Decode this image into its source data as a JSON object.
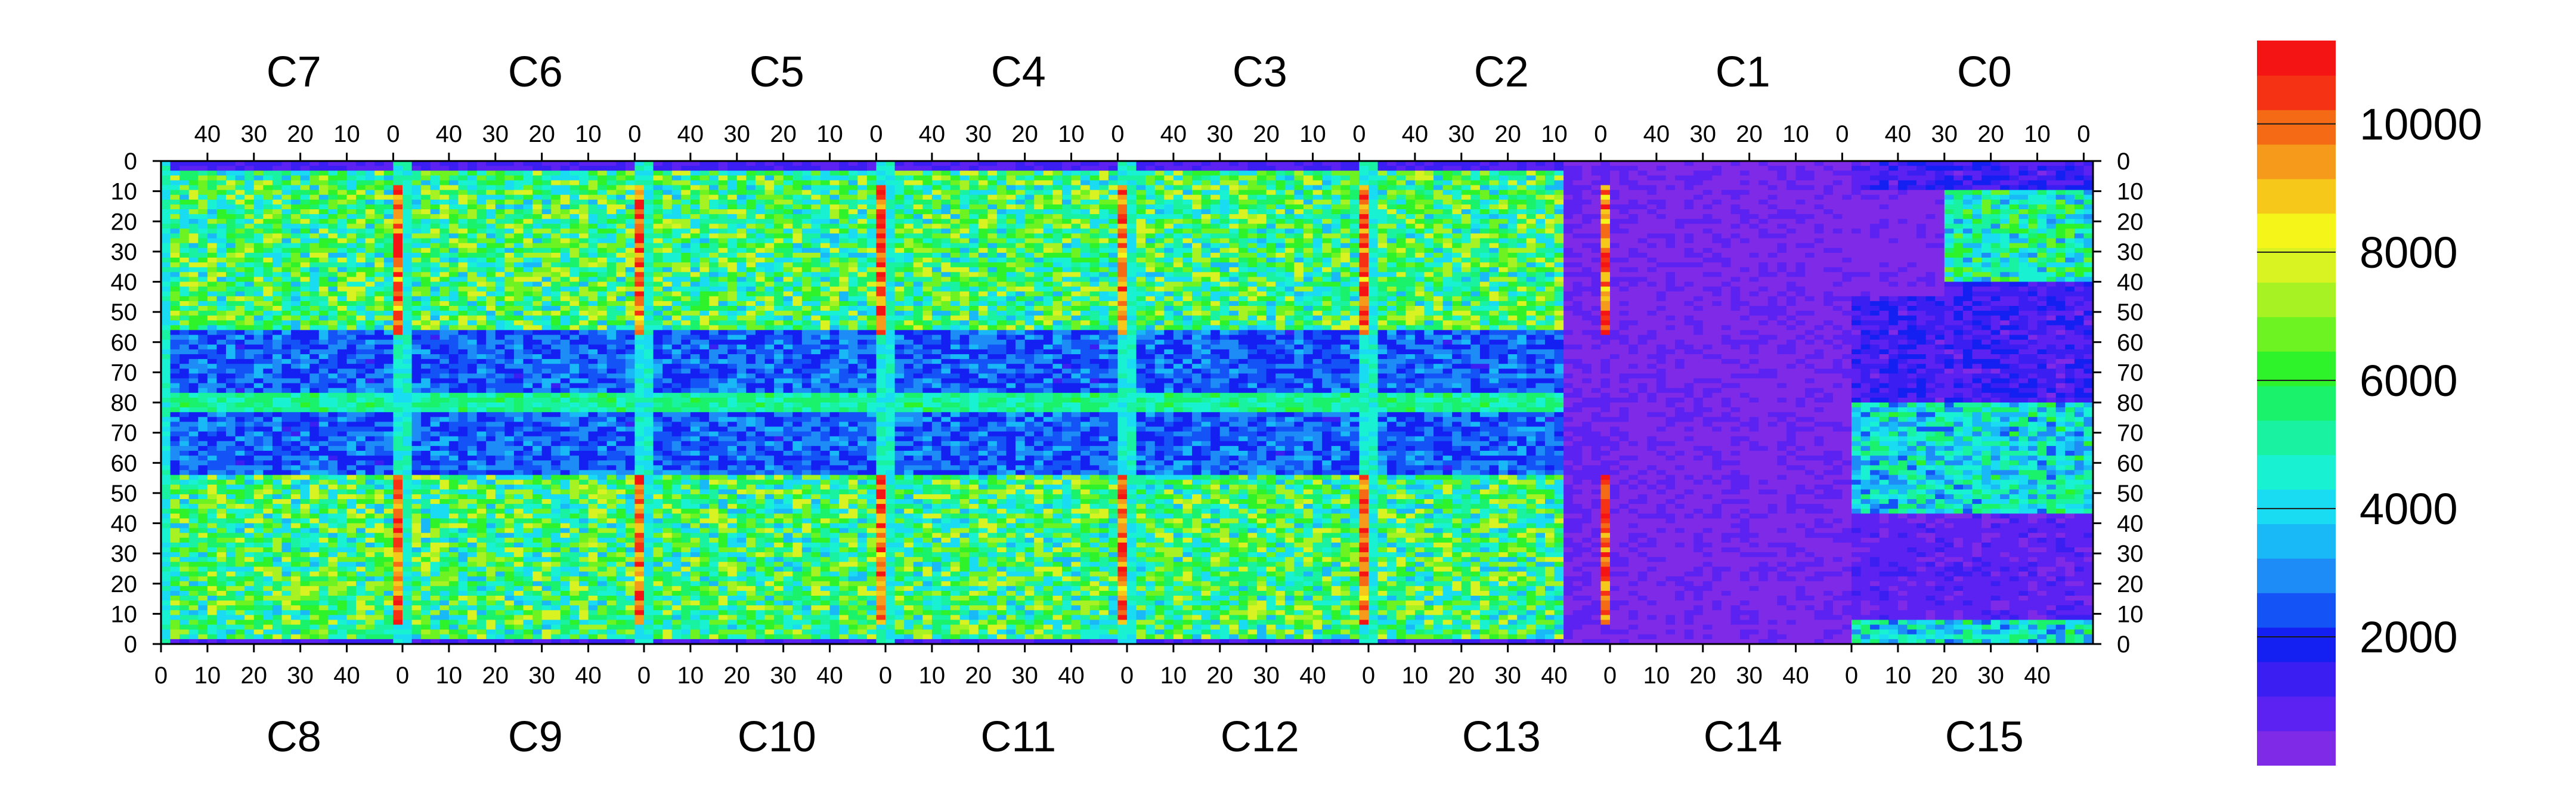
{
  "chart_data": {
    "type": "heatmap",
    "description_top_chips": [
      "C7",
      "C6",
      "C5",
      "C4",
      "C3",
      "C2",
      "C1",
      "C0"
    ],
    "bottom_chips": [
      "C8",
      "C9",
      "C10",
      "C11",
      "C12",
      "C13",
      "C14",
      "C15"
    ],
    "top_axis_ticks": [
      "40",
      "30",
      "20",
      "10",
      "0"
    ],
    "bottom_axis_ticks": [
      "0",
      "10",
      "20",
      "30",
      "40"
    ],
    "left_axis_ticks": [
      "0",
      "10",
      "20",
      "30",
      "40",
      "50",
      "60",
      "70",
      "80",
      "70",
      "60",
      "50",
      "40",
      "30",
      "20",
      "10",
      "0"
    ],
    "right_axis_ticks": [
      "0",
      "10",
      "20",
      "30",
      "40",
      "50",
      "60",
      "70",
      "80",
      "70",
      "60",
      "50",
      "40",
      "30",
      "20",
      "10",
      "0"
    ],
    "colorbar": {
      "min": 0,
      "max": 11300,
      "ticks": [
        2000,
        4000,
        6000,
        8000,
        10000
      ],
      "tick_labels": [
        "2000",
        "4000",
        "6000",
        "8000",
        "10000"
      ],
      "palette": [
        "#7f2ae6",
        "#5b22f2",
        "#3a1ef2",
        "#1420f2",
        "#1453f5",
        "#1e8cf7",
        "#19b8f7",
        "#19dcf2",
        "#19f2d2",
        "#19f2a0",
        "#19f26a",
        "#2ef22a",
        "#6df222",
        "#a6f222",
        "#d8f222",
        "#f5f51a",
        "#f5c81a",
        "#f59a1a",
        "#f56a14",
        "#f53214",
        "#f51414"
      ]
    },
    "columns_per_chip": 52,
    "rows_per_half": 80
  }
}
